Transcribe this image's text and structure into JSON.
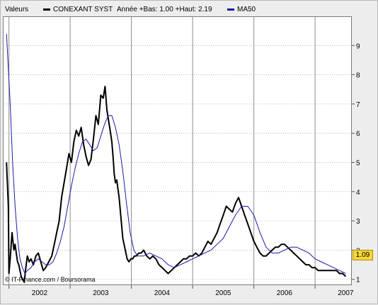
{
  "legend": {
    "label": "Valeurs",
    "series_name": "CONEXANT SYST",
    "range_text": "Année +Bas: 1.00 +Haut: 2.19",
    "ma_name": "MA50"
  },
  "credit": "© IT-Finance.com / Boursorama",
  "last_value": "1.09",
  "colors": {
    "price": "#000000",
    "ma": "#1a1aa6",
    "badge": "#f6d63a",
    "grid": "#8c8c8c"
  },
  "chart_data": {
    "type": "line",
    "x_ticks": [
      "2002",
      "2003",
      "2004",
      "2005",
      "2006",
      "2007"
    ],
    "y_ticks": [
      1,
      2,
      3,
      4,
      5,
      6,
      7,
      8,
      9
    ],
    "ylim": [
      0.8,
      10
    ],
    "xlim": [
      2001.9,
      2007.6
    ],
    "grid": true,
    "legend_position": "top",
    "series": [
      {
        "name": "CONEXANT SYST",
        "x": [
          2001.96,
          2001.99,
          2002.0,
          2002.02,
          2002.05,
          2002.08,
          2002.1,
          2002.12,
          2002.14,
          2002.16,
          2002.18,
          2002.2,
          2002.22,
          2002.25,
          2002.27,
          2002.3,
          2002.33,
          2002.36,
          2002.4,
          2002.44,
          2002.48,
          2002.52,
          2002.56,
          2002.6,
          2002.65,
          2002.7,
          2002.74,
          2002.78,
          2002.82,
          2002.86,
          2002.9,
          2002.94,
          2002.98,
          2003.02,
          2003.06,
          2003.1,
          2003.14,
          2003.18,
          2003.22,
          2003.26,
          2003.3,
          2003.34,
          2003.38,
          2003.42,
          2003.46,
          2003.5,
          2003.54,
          2003.57,
          2003.6,
          2003.63,
          2003.66,
          2003.68,
          2003.7,
          2003.72,
          2003.74,
          2003.76,
          2003.78,
          2003.8,
          2003.83,
          2003.86,
          2003.9,
          2003.93,
          2003.96,
          2003.99,
          2004.02,
          2004.05,
          2004.08,
          2004.12,
          2004.16,
          2004.2,
          2004.25,
          2004.3,
          2004.35,
          2004.4,
          2004.45,
          2004.5,
          2004.55,
          2004.6,
          2004.65,
          2004.7,
          2004.75,
          2004.8,
          2004.85,
          2004.9,
          2004.95,
          2005.0,
          2005.05,
          2005.1,
          2005.15,
          2005.2,
          2005.25,
          2005.3,
          2005.35,
          2005.4,
          2005.45,
          2005.5,
          2005.55,
          2005.6,
          2005.65,
          2005.7,
          2005.75,
          2005.8,
          2005.85,
          2005.9,
          2005.95,
          2006.0,
          2006.05,
          2006.1,
          2006.15,
          2006.2,
          2006.25,
          2006.3,
          2006.35,
          2006.4,
          2006.45,
          2006.5,
          2006.55,
          2006.6,
          2006.65,
          2006.7,
          2006.75,
          2006.8,
          2006.85,
          2006.9,
          2006.95,
          2007.0,
          2007.05,
          2007.1,
          2007.15,
          2007.2,
          2007.25,
          2007.3,
          2007.35,
          2007.4,
          2007.45,
          2007.5
        ],
        "y": [
          5.0,
          3.5,
          1.2,
          1.7,
          2.6,
          2.0,
          2.2,
          1.9,
          1.6,
          1.5,
          1.3,
          1.1,
          1.0,
          0.9,
          1.3,
          1.8,
          1.6,
          1.7,
          1.5,
          1.8,
          1.9,
          1.6,
          1.3,
          1.4,
          1.6,
          1.8,
          2.2,
          2.6,
          3.0,
          3.8,
          4.3,
          4.8,
          5.3,
          5.0,
          5.7,
          6.1,
          5.9,
          6.2,
          5.6,
          5.2,
          4.9,
          5.1,
          5.8,
          6.6,
          6.3,
          7.3,
          7.2,
          7.6,
          6.8,
          6.4,
          6.0,
          5.7,
          5.2,
          4.6,
          4.3,
          4.4,
          4.1,
          3.8,
          3.1,
          2.4,
          2.0,
          1.7,
          1.6,
          1.7,
          1.7,
          1.8,
          1.8,
          1.9,
          1.9,
          2.0,
          1.8,
          1.7,
          1.8,
          1.7,
          1.5,
          1.4,
          1.3,
          1.2,
          1.3,
          1.4,
          1.5,
          1.6,
          1.7,
          1.7,
          1.8,
          1.8,
          1.9,
          1.8,
          1.9,
          2.1,
          2.3,
          2.2,
          2.4,
          2.6,
          2.9,
          3.2,
          3.5,
          3.4,
          3.3,
          3.6,
          3.8,
          3.5,
          3.2,
          2.9,
          2.6,
          2.3,
          2.1,
          1.9,
          1.8,
          1.8,
          1.9,
          2.0,
          2.1,
          2.1,
          2.2,
          2.2,
          2.1,
          2.0,
          1.9,
          1.8,
          1.7,
          1.6,
          1.5,
          1.5,
          1.4,
          1.4,
          1.3,
          1.3,
          1.3,
          1.3,
          1.3,
          1.3,
          1.3,
          1.2,
          1.2,
          1.1
        ]
      },
      {
        "name": "MA50",
        "x": [
          2001.96,
          2002.02,
          2002.06,
          2002.1,
          2002.14,
          2002.18,
          2002.22,
          2002.26,
          2002.3,
          2002.36,
          2002.42,
          2002.48,
          2002.54,
          2002.6,
          2002.66,
          2002.72,
          2002.78,
          2002.84,
          2002.9,
          2002.96,
          2003.02,
          2003.08,
          2003.14,
          2003.2,
          2003.26,
          2003.32,
          2003.38,
          2003.44,
          2003.5,
          2003.56,
          2003.62,
          2003.68,
          2003.74,
          2003.8,
          2003.86,
          2003.92,
          2003.98,
          2004.04,
          2004.1,
          2004.2,
          2004.3,
          2004.4,
          2004.5,
          2004.6,
          2004.7,
          2004.8,
          2004.9,
          2005.0,
          2005.1,
          2005.2,
          2005.3,
          2005.4,
          2005.5,
          2005.6,
          2005.7,
          2005.8,
          2005.9,
          2006.0,
          2006.1,
          2006.2,
          2006.3,
          2006.4,
          2006.5,
          2006.6,
          2006.7,
          2006.8,
          2006.9,
          2007.0,
          2007.1,
          2007.2,
          2007.3,
          2007.4,
          2007.5
        ],
        "y": [
          9.4,
          7.0,
          5.0,
          3.5,
          2.4,
          1.7,
          1.4,
          1.2,
          1.3,
          1.4,
          1.6,
          1.7,
          1.6,
          1.5,
          1.5,
          1.6,
          1.9,
          2.3,
          2.8,
          3.5,
          4.2,
          4.8,
          5.3,
          5.7,
          5.8,
          5.6,
          5.4,
          5.5,
          5.9,
          6.3,
          6.6,
          6.6,
          6.2,
          5.6,
          4.7,
          3.6,
          2.6,
          2.0,
          1.8,
          1.8,
          1.9,
          1.8,
          1.7,
          1.5,
          1.4,
          1.5,
          1.6,
          1.7,
          1.8,
          1.9,
          2.0,
          2.2,
          2.4,
          2.8,
          3.2,
          3.5,
          3.5,
          3.2,
          2.6,
          2.1,
          1.9,
          1.9,
          2.0,
          2.1,
          2.1,
          2.0,
          1.9,
          1.7,
          1.6,
          1.5,
          1.4,
          1.3,
          1.2
        ]
      }
    ]
  }
}
